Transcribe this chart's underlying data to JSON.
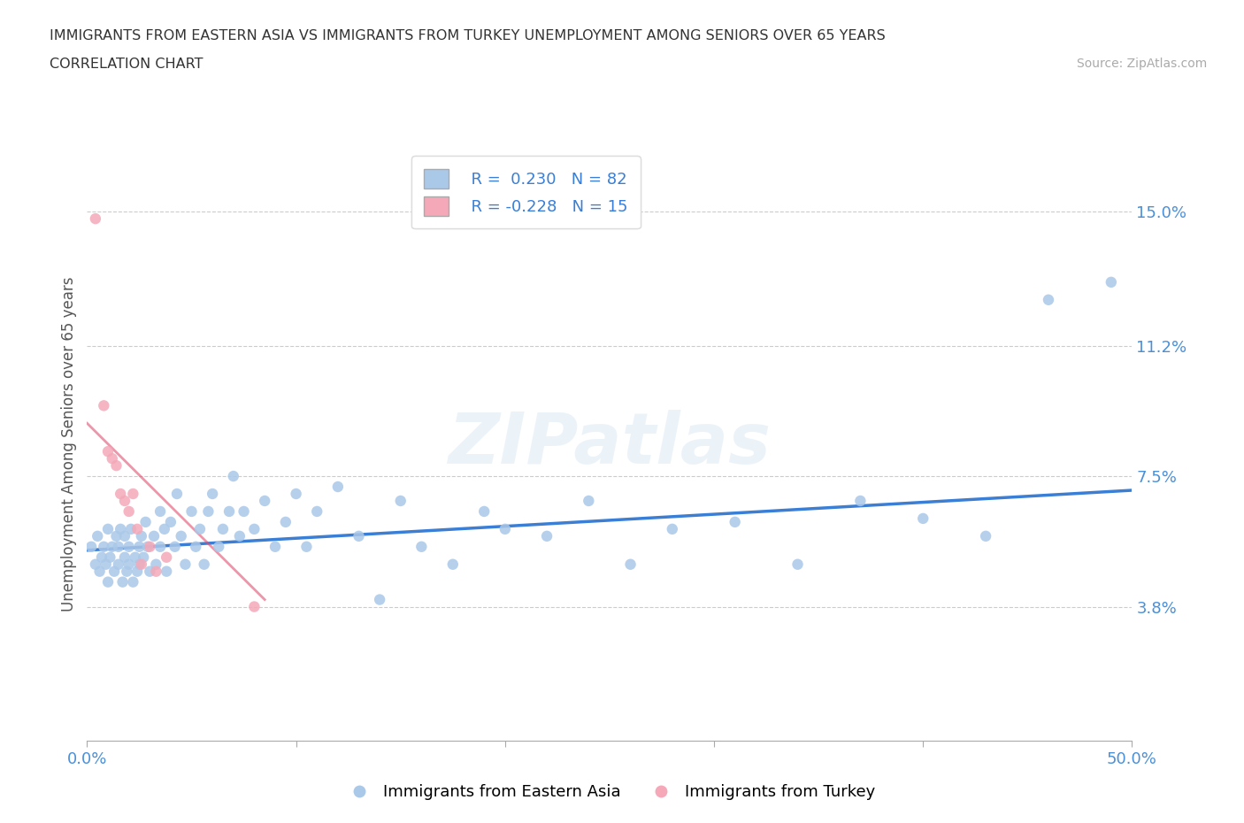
{
  "title_line1": "IMMIGRANTS FROM EASTERN ASIA VS IMMIGRANTS FROM TURKEY UNEMPLOYMENT AMONG SENIORS OVER 65 YEARS",
  "title_line2": "CORRELATION CHART",
  "source": "Source: ZipAtlas.com",
  "ylabel": "Unemployment Among Seniors over 65 years",
  "xlim": [
    0.0,
    0.5
  ],
  "ylim": [
    0.0,
    0.168
  ],
  "yticks": [
    0.038,
    0.075,
    0.112,
    0.15
  ],
  "ytick_labels": [
    "3.8%",
    "7.5%",
    "11.2%",
    "15.0%"
  ],
  "xticks": [
    0.0,
    0.1,
    0.2,
    0.3,
    0.4,
    0.5
  ],
  "xtick_labels": [
    "0.0%",
    "",
    "",
    "",
    "",
    "50.0%"
  ],
  "color_blue": "#aac8e8",
  "color_pink": "#f4a8b8",
  "trendline_blue": "#3a7fd5",
  "trendline_pink": "#e05070",
  "tick_color": "#4a90d9",
  "legend_R_blue": "0.230",
  "legend_N_blue": "82",
  "legend_R_pink": "-0.228",
  "legend_N_pink": "15",
  "watermark": "ZIPatlas",
  "blue_x": [
    0.002,
    0.004,
    0.005,
    0.006,
    0.007,
    0.008,
    0.009,
    0.01,
    0.01,
    0.011,
    0.012,
    0.013,
    0.014,
    0.015,
    0.015,
    0.016,
    0.017,
    0.018,
    0.018,
    0.019,
    0.02,
    0.02,
    0.021,
    0.022,
    0.023,
    0.024,
    0.025,
    0.025,
    0.026,
    0.027,
    0.028,
    0.029,
    0.03,
    0.032,
    0.033,
    0.035,
    0.035,
    0.037,
    0.038,
    0.04,
    0.042,
    0.043,
    0.045,
    0.047,
    0.05,
    0.052,
    0.054,
    0.056,
    0.058,
    0.06,
    0.063,
    0.065,
    0.068,
    0.07,
    0.073,
    0.075,
    0.08,
    0.085,
    0.09,
    0.095,
    0.1,
    0.105,
    0.11,
    0.12,
    0.13,
    0.14,
    0.15,
    0.16,
    0.175,
    0.19,
    0.2,
    0.22,
    0.24,
    0.26,
    0.28,
    0.31,
    0.34,
    0.37,
    0.4,
    0.43,
    0.46,
    0.49
  ],
  "blue_y": [
    0.055,
    0.05,
    0.058,
    0.048,
    0.052,
    0.055,
    0.05,
    0.045,
    0.06,
    0.052,
    0.055,
    0.048,
    0.058,
    0.05,
    0.055,
    0.06,
    0.045,
    0.052,
    0.058,
    0.048,
    0.05,
    0.055,
    0.06,
    0.045,
    0.052,
    0.048,
    0.055,
    0.05,
    0.058,
    0.052,
    0.062,
    0.055,
    0.048,
    0.058,
    0.05,
    0.065,
    0.055,
    0.06,
    0.048,
    0.062,
    0.055,
    0.07,
    0.058,
    0.05,
    0.065,
    0.055,
    0.06,
    0.05,
    0.065,
    0.07,
    0.055,
    0.06,
    0.065,
    0.075,
    0.058,
    0.065,
    0.06,
    0.068,
    0.055,
    0.062,
    0.07,
    0.055,
    0.065,
    0.072,
    0.058,
    0.04,
    0.068,
    0.055,
    0.05,
    0.065,
    0.06,
    0.058,
    0.068,
    0.05,
    0.06,
    0.062,
    0.05,
    0.068,
    0.063,
    0.058,
    0.125,
    0.13
  ],
  "pink_x": [
    0.004,
    0.008,
    0.01,
    0.012,
    0.014,
    0.016,
    0.018,
    0.02,
    0.022,
    0.024,
    0.026,
    0.03,
    0.033,
    0.038,
    0.08
  ],
  "pink_y": [
    0.148,
    0.095,
    0.082,
    0.08,
    0.078,
    0.07,
    0.068,
    0.065,
    0.07,
    0.06,
    0.05,
    0.055,
    0.048,
    0.052,
    0.038
  ],
  "blue_trendline_x": [
    0.0,
    0.5
  ],
  "blue_trendline_y": [
    0.054,
    0.071
  ],
  "pink_trendline_x": [
    0.0,
    0.085
  ],
  "pink_trendline_y": [
    0.09,
    0.04
  ]
}
